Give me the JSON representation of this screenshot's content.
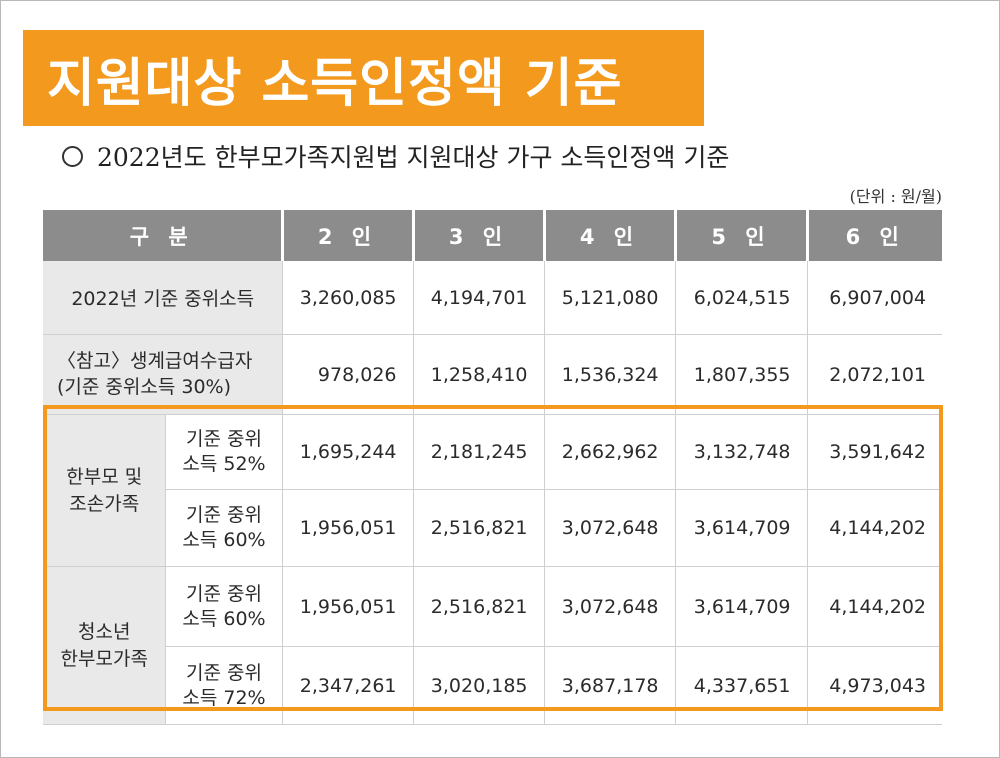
{
  "banner": {
    "title": "지원대상 소득인정액 기준"
  },
  "subtitle": {
    "bullet": "○",
    "text": "2022년도 한부모가족지원법 지원대상 가구 소득인정액 기준"
  },
  "unit": "(단위 : 원/월)",
  "table": {
    "headers": [
      "구 분",
      "2 인",
      "3 인",
      "4 인",
      "5 인",
      "6 인"
    ],
    "rows": [
      {
        "label": "2022년 기준 중위소득",
        "values": [
          "3,260,085",
          "4,194,701",
          "5,121,080",
          "6,024,515",
          "6,907,004"
        ]
      },
      {
        "label_line1": "〈참고〉생계급여수급자",
        "label_line2": "(기준 중위소득 30%)",
        "values": [
          "978,026",
          "1,258,410",
          "1,536,324",
          "1,807,355",
          "2,072,101"
        ]
      }
    ],
    "groups": [
      {
        "label_line1": "한부모 및",
        "label_line2": "조손가족",
        "rows": [
          {
            "line1": "기준 중위",
            "line2": "소득 52%",
            "values": [
              "1,695,244",
              "2,181,245",
              "2,662,962",
              "3,132,748",
              "3,591,642"
            ]
          },
          {
            "line1": "기준 중위",
            "line2": "소득 60%",
            "values": [
              "1,956,051",
              "2,516,821",
              "3,072,648",
              "3,614,709",
              "4,144,202"
            ]
          }
        ]
      },
      {
        "label_line1": "청소년",
        "label_line2": "한부모가족",
        "rows": [
          {
            "line1": "기준 중위",
            "line2": "소득 60%",
            "values": [
              "1,956,051",
              "2,516,821",
              "3,072,648",
              "3,614,709",
              "4,144,202"
            ]
          },
          {
            "line1": "기준 중위",
            "line2": "소득 72%",
            "values": [
              "2,347,261",
              "3,020,185",
              "3,687,178",
              "4,337,651",
              "4,973,043"
            ]
          }
        ]
      }
    ]
  },
  "colors": {
    "accent": "#f39a1e",
    "header_bg": "#8c8c8c",
    "label_bg": "#e9e9e9"
  }
}
